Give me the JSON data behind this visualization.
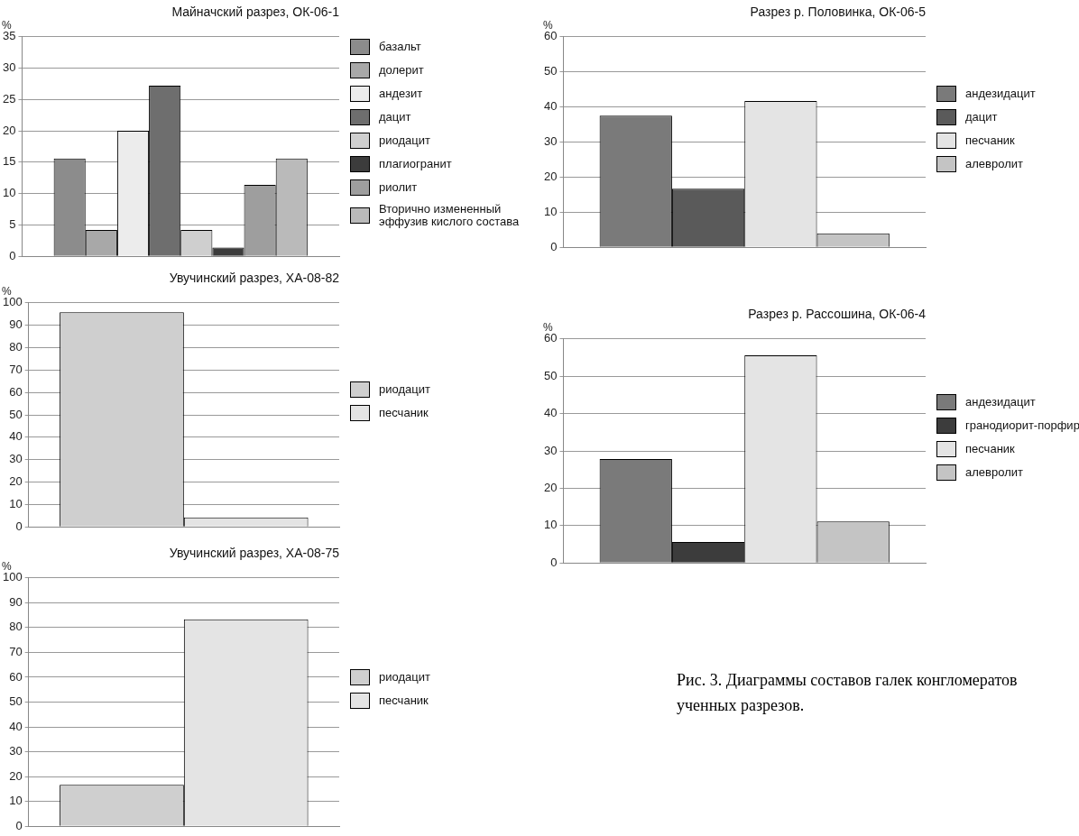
{
  "chart_data": [
    {
      "type": "bar",
      "title": "Майначский разрез, ОК-06-1",
      "ylabel": "%",
      "categories": [
        null
      ],
      "ylim": [
        0,
        35
      ],
      "yticks": [
        0,
        5,
        10,
        15,
        20,
        25,
        30,
        35
      ],
      "grid": "y",
      "legend": "right",
      "series": [
        {
          "name": "базальт",
          "color": "#8c8c8c",
          "values": [
            15.6
          ]
        },
        {
          "name": "долерит",
          "color": "#a8a8a8",
          "values": [
            4.2
          ]
        },
        {
          "name": "андезит",
          "color": "#ececec",
          "values": [
            20
          ]
        },
        {
          "name": "дацит",
          "color": "#6e6e6e",
          "values": [
            27.2
          ]
        },
        {
          "name": "риодацит",
          "color": "#cfcfcf",
          "values": [
            4.2
          ]
        },
        {
          "name": "плагиогранит",
          "color": "#3c3c3c",
          "values": [
            1.4
          ]
        },
        {
          "name": "риолит",
          "color": "#9e9e9e",
          "values": [
            11.4
          ]
        },
        {
          "name": "Вторично измененный эффузив кислого состава",
          "color": "#bababa",
          "values": [
            15.6
          ]
        }
      ]
    },
    {
      "type": "bar",
      "title": "Разрез р. Половинка, ОК-06-5",
      "ylabel": "%",
      "categories": [
        null
      ],
      "ylim": [
        0,
        60
      ],
      "yticks": [
        0,
        10,
        20,
        30,
        40,
        50,
        60
      ],
      "grid": "y",
      "legend": "right",
      "series": [
        {
          "name": "андезидацит",
          "color": "#7a7a7a",
          "values": [
            37.5
          ]
        },
        {
          "name": "дацит",
          "color": "#5a5a5a",
          "values": [
            16.7
          ]
        },
        {
          "name": "песчаник",
          "color": "#e4e4e4",
          "values": [
            41.7
          ]
        },
        {
          "name": "алевролит",
          "color": "#c4c4c4",
          "values": [
            4
          ]
        }
      ]
    },
    {
      "type": "bar",
      "title": "Увучинский разрез, ХА-08-82",
      "ylabel": "%",
      "categories": [
        null
      ],
      "ylim": [
        0,
        100
      ],
      "yticks": [
        0,
        10,
        20,
        30,
        40,
        50,
        60,
        70,
        80,
        90,
        100
      ],
      "grid": "y",
      "legend": "right",
      "series": [
        {
          "name": "риодацит",
          "color": "#cfcfcf",
          "values": [
            95.8
          ]
        },
        {
          "name": "песчаник",
          "color": "#e4e4e4",
          "values": [
            4.2
          ]
        }
      ]
    },
    {
      "type": "bar",
      "title": "Разрез р. Рассошина, ОК-06-4",
      "ylabel": "%",
      "categories": [
        null
      ],
      "ylim": [
        0,
        60
      ],
      "yticks": [
        0,
        10,
        20,
        30,
        40,
        50,
        60
      ],
      "grid": "y",
      "legend": "right",
      "annotations": [
        "Рис. 3. Диаграммы составов галек конгломератов ученных разрезов."
      ],
      "series": [
        {
          "name": "андезидацит",
          "color": "#7a7a7a",
          "values": [
            27.8
          ]
        },
        {
          "name": "гранодиорит-порфир",
          "color": "#3c3c3c",
          "values": [
            5.6
          ]
        },
        {
          "name": "песчаник",
          "color": "#e4e4e4",
          "values": [
            55.6
          ]
        },
        {
          "name": "алевролит",
          "color": "#c4c4c4",
          "values": [
            11.1
          ]
        }
      ]
    },
    {
      "type": "bar",
      "title": "Увучинский разрез, ХА-08-75",
      "ylabel": "%",
      "categories": [
        null
      ],
      "ylim": [
        0,
        100
      ],
      "yticks": [
        0,
        10,
        20,
        30,
        40,
        50,
        60,
        70,
        80,
        90,
        100
      ],
      "grid": "y",
      "legend": "right",
      "series": [
        {
          "name": "риодацит",
          "color": "#cfcfcf",
          "values": [
            16.7
          ]
        },
        {
          "name": "песчаник",
          "color": "#e4e4e4",
          "values": [
            83.3
          ]
        }
      ]
    }
  ]
}
